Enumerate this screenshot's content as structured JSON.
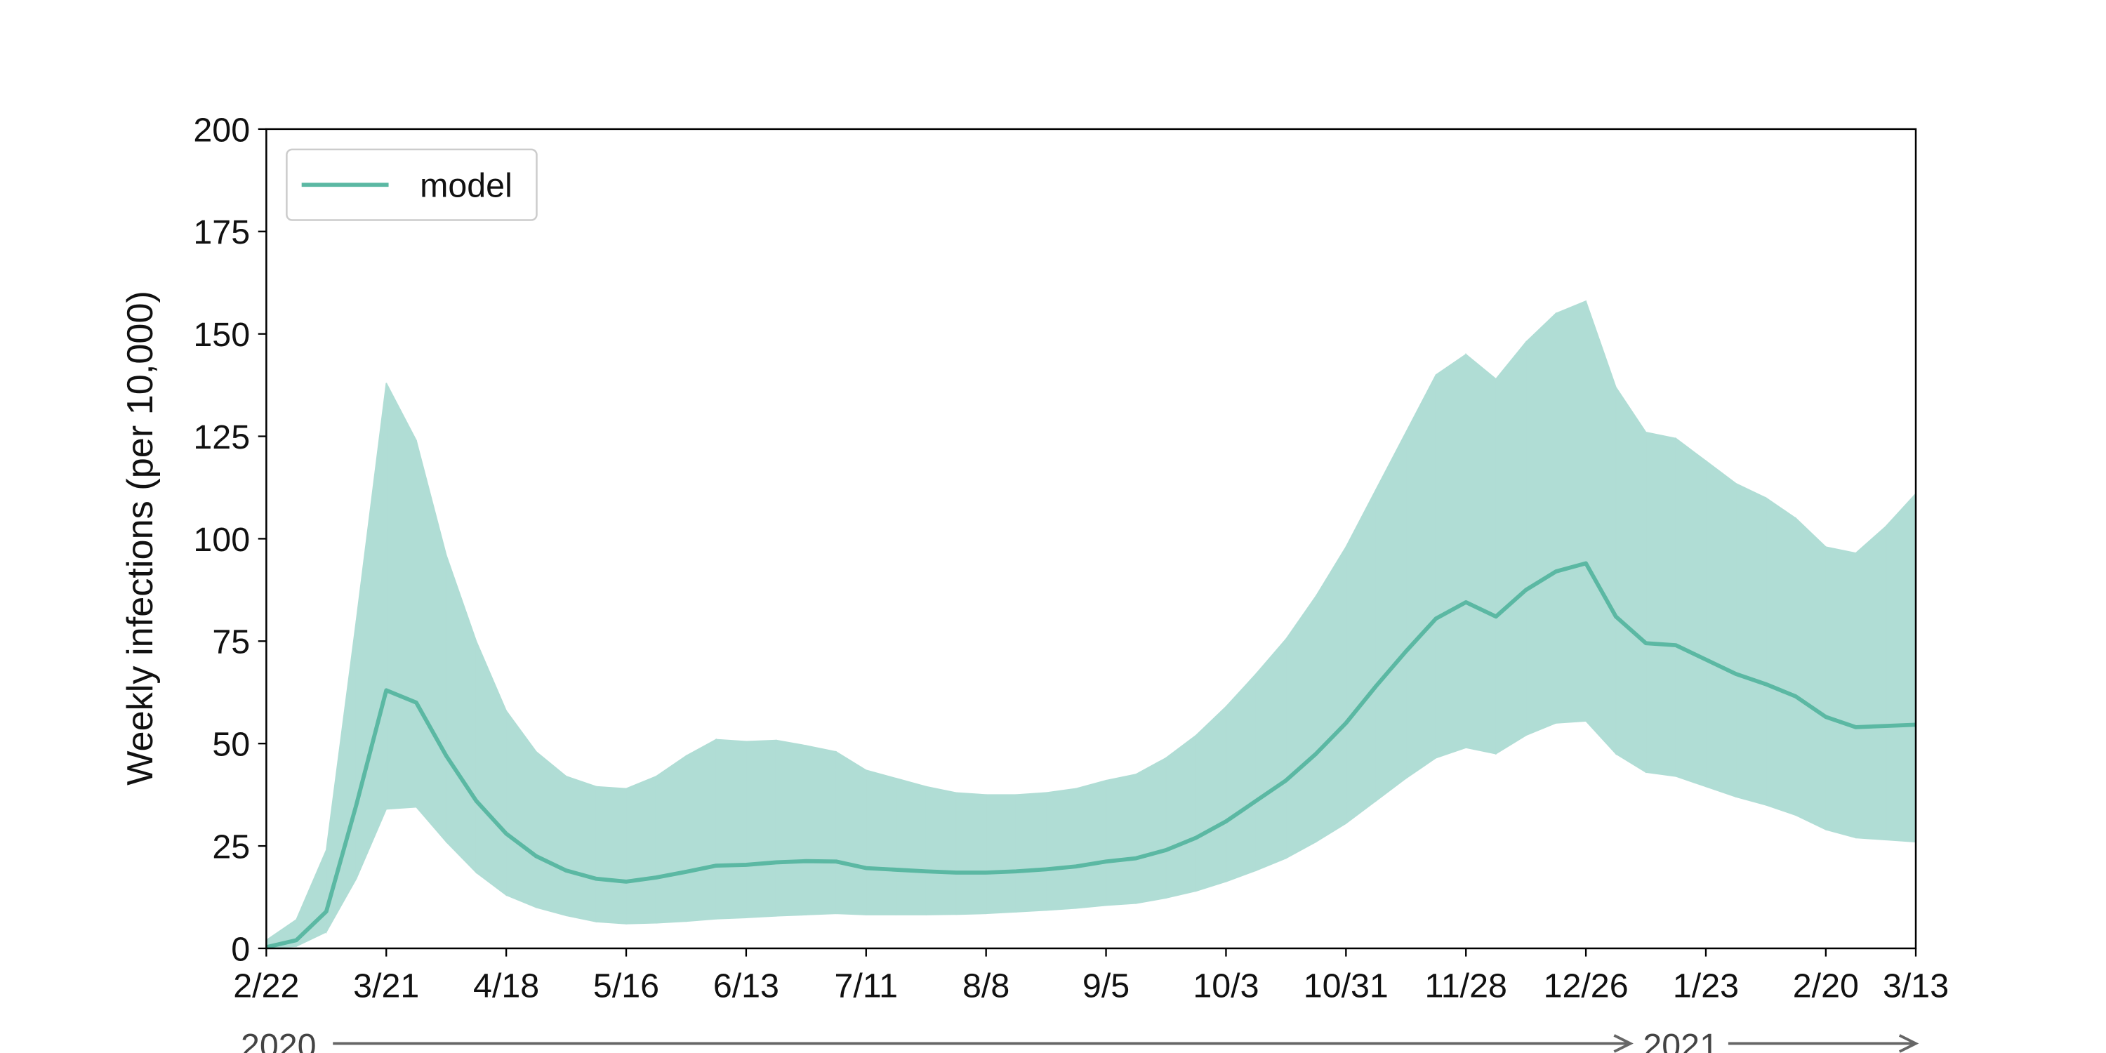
{
  "chart_data": {
    "type": "line",
    "ylabel": "Weekly infections (per 10,000)",
    "categories": [
      "2/22",
      null,
      null,
      null,
      "3/21",
      null,
      null,
      null,
      "4/18",
      null,
      null,
      null,
      "5/16",
      null,
      null,
      null,
      "6/13",
      null,
      null,
      null,
      "7/11",
      null,
      null,
      null,
      "8/8",
      null,
      null,
      null,
      "9/5",
      null,
      null,
      null,
      "10/3",
      null,
      null,
      null,
      "10/31",
      null,
      null,
      null,
      "11/28",
      null,
      null,
      null,
      "12/26",
      null,
      null,
      null,
      "1/23",
      null,
      null,
      null,
      "2/20",
      null,
      null,
      "3/13"
    ],
    "series": [
      {
        "name": "model",
        "color": "#5bb8a3",
        "values": [
          0.3,
          2,
          9,
          35,
          63,
          60,
          47,
          36,
          28,
          22.5,
          19,
          17,
          16.3,
          17.3,
          18.7,
          20.2,
          20.4,
          21,
          21.3,
          21.2,
          19.6,
          19.2,
          18.8,
          18.5,
          18.5,
          18.8,
          19.3,
          20,
          21.2,
          22,
          24,
          27,
          31,
          36,
          41,
          47.5,
          55,
          64,
          72.5,
          80.5,
          84.5,
          81,
          87.5,
          92,
          94,
          81,
          74.5,
          74,
          70.5,
          67,
          64.5,
          61.5,
          56.5,
          54,
          54.3,
          54.6
        ]
      }
    ],
    "band": {
      "color": "#b0ddd5",
      "upper": [
        2,
        7,
        24,
        80,
        138,
        124,
        96,
        75,
        58,
        48,
        42,
        39.5,
        39,
        42,
        47,
        51,
        50.5,
        50.8,
        49.5,
        48,
        43.5,
        41.5,
        39.5,
        38,
        37.5,
        37.5,
        38,
        39,
        41,
        42.5,
        46.5,
        52,
        59,
        67,
        75.5,
        86,
        98,
        112,
        126,
        140,
        145,
        139,
        148,
        155,
        158,
        137,
        126,
        124.5,
        119,
        113.5,
        110,
        105,
        98,
        96.5,
        103,
        111
      ],
      "lower": [
        0,
        0.5,
        4,
        17,
        34,
        34.5,
        26,
        18.5,
        13,
        10,
        8,
        6.5,
        6,
        6.2,
        6.6,
        7.2,
        7.5,
        7.9,
        8.2,
        8.5,
        8.2,
        8.2,
        8.2,
        8.3,
        8.5,
        8.9,
        9.3,
        9.8,
        10.5,
        11,
        12.3,
        14,
        16.3,
        19,
        22,
        26,
        30.5,
        36,
        41.5,
        46.5,
        49,
        47.5,
        52,
        55,
        55.5,
        47.5,
        43,
        42,
        39.5,
        37,
        35,
        32.5,
        29,
        27,
        26.5,
        26
      ]
    },
    "ylim": [
      0,
      200
    ],
    "yticks": [
      0,
      25,
      50,
      75,
      100,
      125,
      150,
      175,
      200
    ],
    "grid": false,
    "legend": "upper left",
    "annotations": [
      "2020",
      "2021"
    ]
  }
}
